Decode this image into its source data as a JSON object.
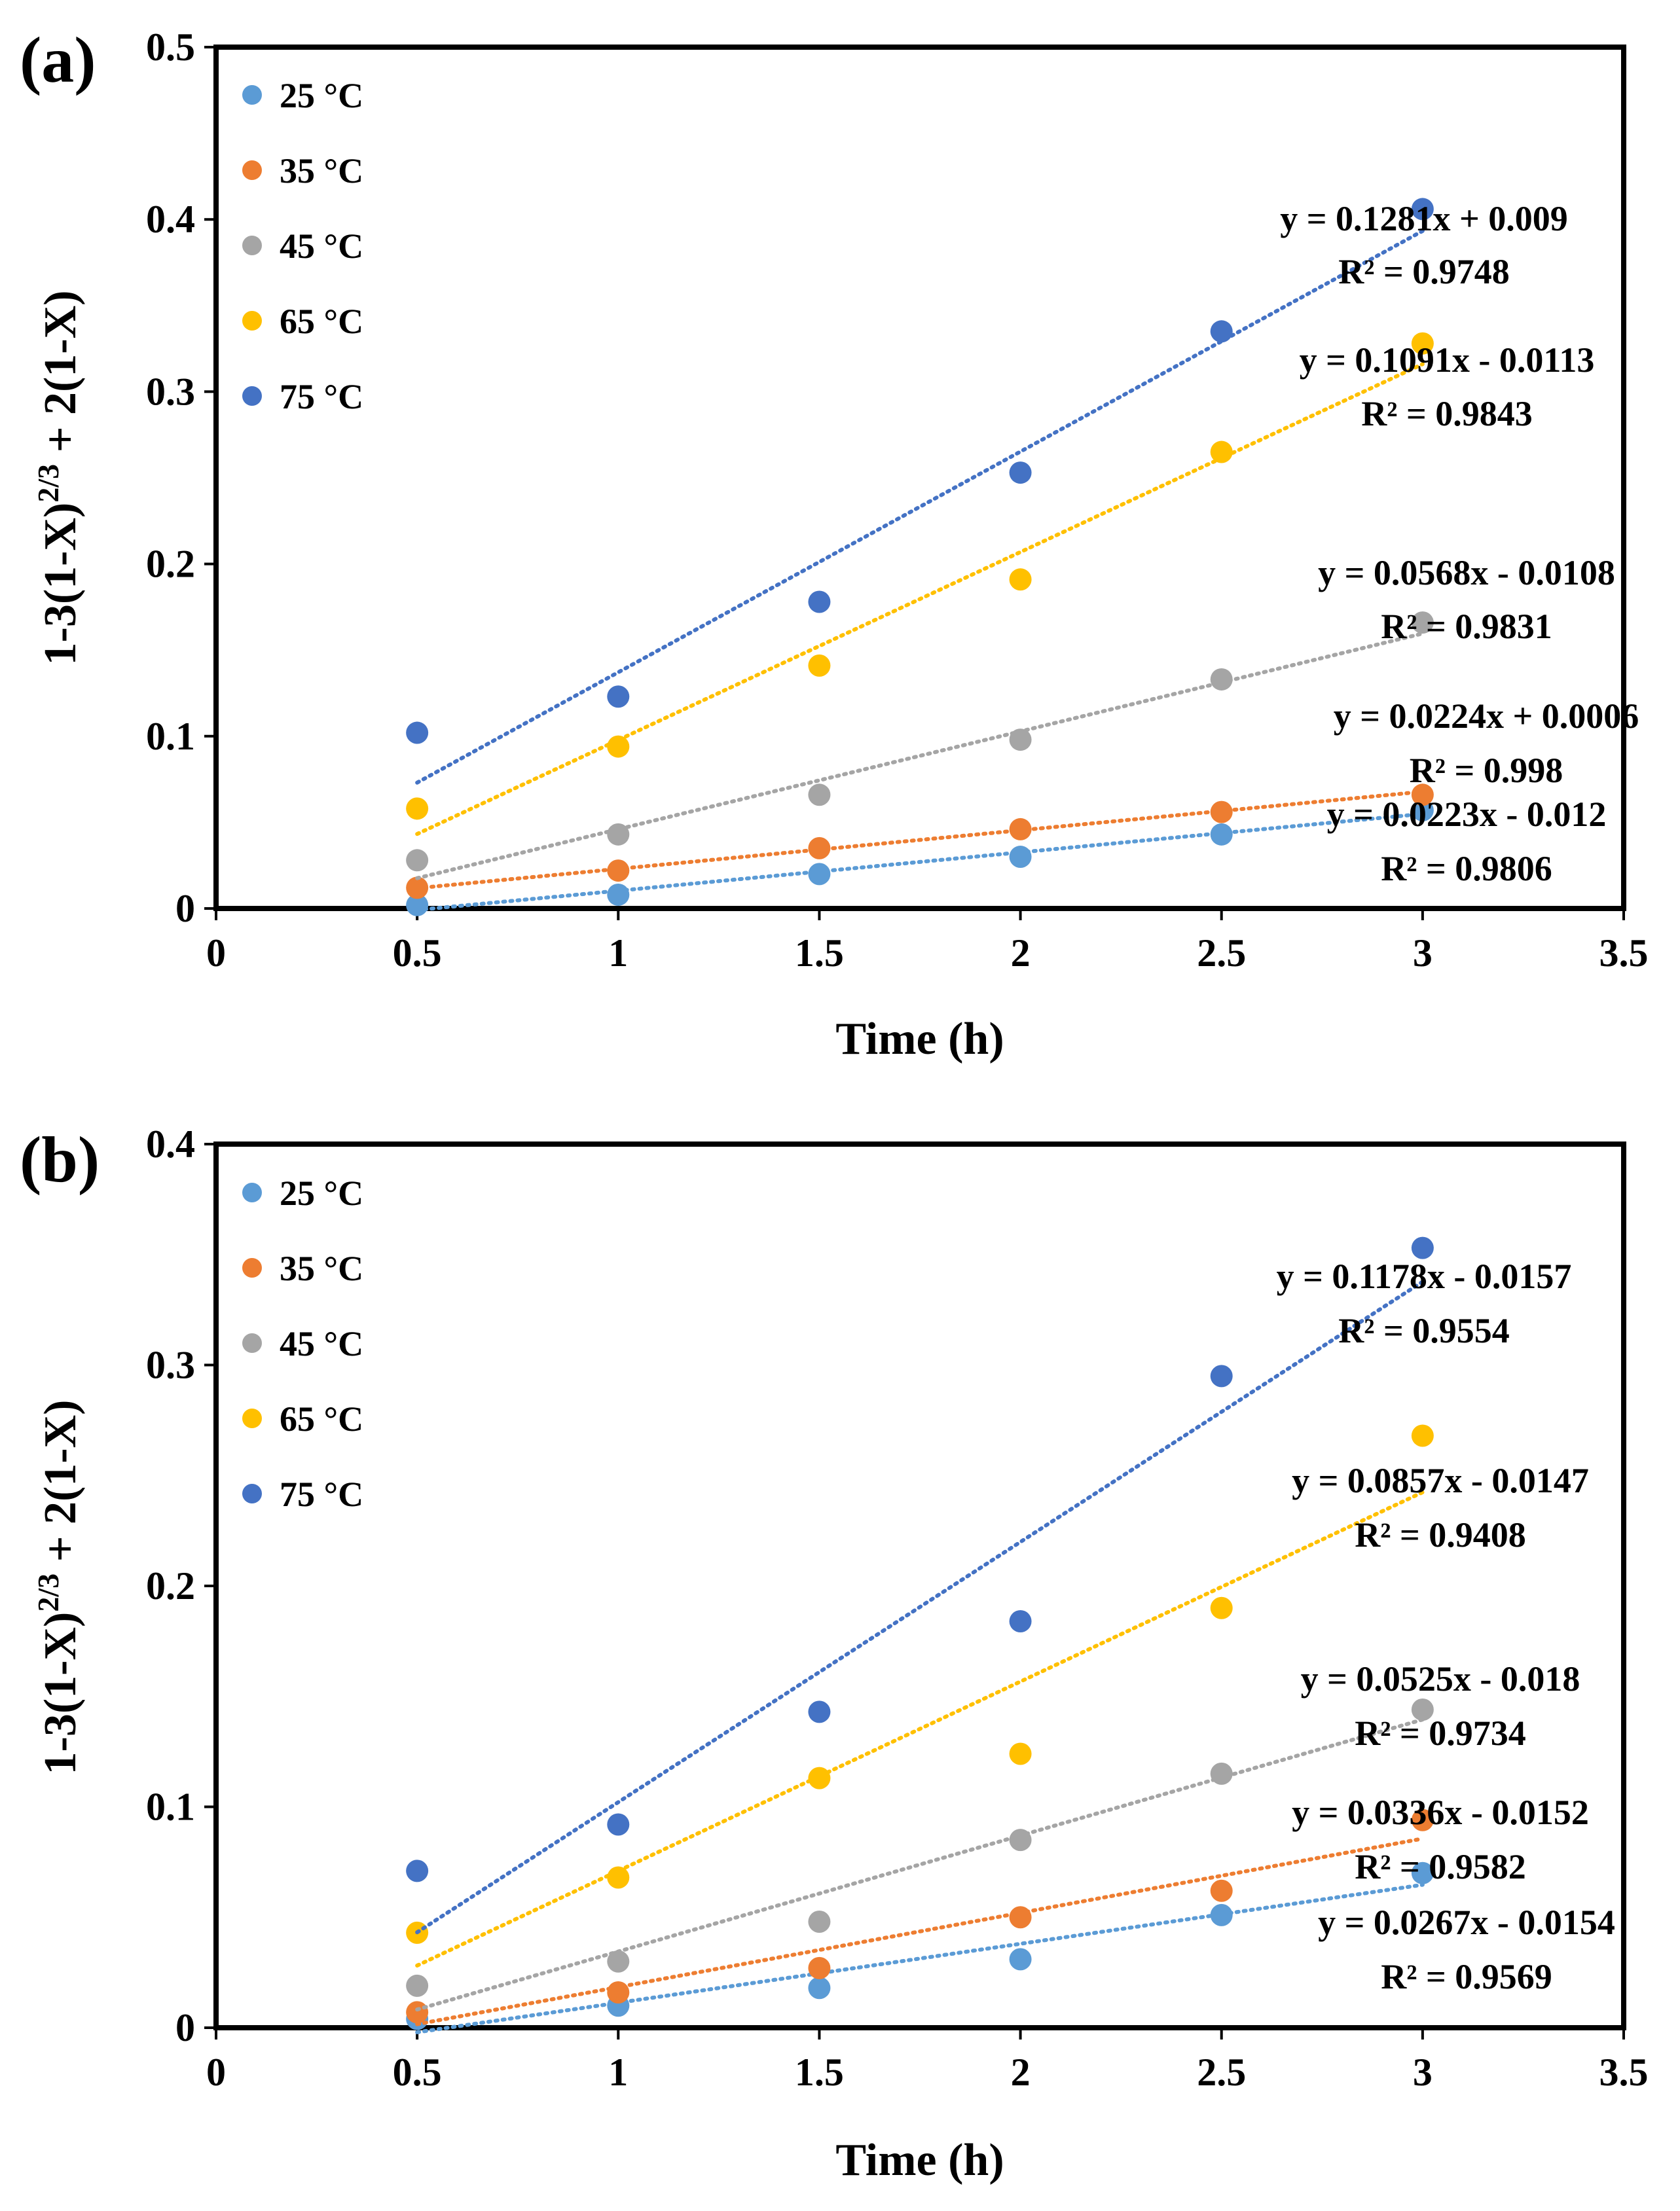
{
  "figure": {
    "panels": [
      "(a)",
      "(b)"
    ]
  },
  "chart_data": [
    {
      "type": "scatter",
      "panel": "(a)",
      "title": "",
      "xlabel": "Time (h)",
      "ylabel": "1-3(1-X)^{2/3} + 2(1-X)",
      "xlim": [
        0,
        3.5
      ],
      "ylim": [
        0,
        0.5
      ],
      "xticks": [
        "0",
        "0.5",
        "1",
        "1.5",
        "2",
        "2.5",
        "3",
        "3.5"
      ],
      "yticks": [
        "0",
        "0.1",
        "0.2",
        "0.3",
        "0.4",
        "0.5"
      ],
      "x": [
        0.5,
        1,
        1.5,
        2,
        2.5,
        3
      ],
      "grid": false,
      "legend": "top-left",
      "series": [
        {
          "name": "25 °C",
          "color": "#5b9bd5",
          "values": [
            0.002,
            0.008,
            0.02,
            0.03,
            0.043,
            0.057
          ],
          "trend": {
            "slope": 0.0223,
            "intercept": -0.012
          },
          "equation": "y = 0.0223x - 0.012",
          "r2": "R² = 0.9806"
        },
        {
          "name": "35 °C",
          "color": "#ed7d31",
          "values": [
            0.012,
            0.022,
            0.035,
            0.046,
            0.056,
            0.066
          ],
          "trend": {
            "slope": 0.0224,
            "intercept": 0.0006
          },
          "equation": "y = 0.0224x + 0.0006",
          "r2": "R² = 0.998"
        },
        {
          "name": "45 °C",
          "color": "#a5a5a5",
          "values": [
            0.028,
            0.043,
            0.066,
            0.098,
            0.133,
            0.166
          ],
          "trend": {
            "slope": 0.0568,
            "intercept": -0.0108
          },
          "equation": "y = 0.0568x - 0.0108",
          "r2": "R² = 0.9831"
        },
        {
          "name": "65 °C",
          "color": "#ffc000",
          "values": [
            0.058,
            0.094,
            0.141,
            0.191,
            0.265,
            0.328
          ],
          "trend": {
            "slope": 0.1091,
            "intercept": -0.0113
          },
          "equation": "y = 0.1091x - 0.0113",
          "r2": "R² = 0.9843"
        },
        {
          "name": "75 °C",
          "color": "#4472c4",
          "values": [
            0.102,
            0.123,
            0.178,
            0.253,
            0.335,
            0.406
          ],
          "trend": {
            "slope": 0.1281,
            "intercept": 0.009
          },
          "equation": "y = 0.1281x + 0.009",
          "r2": "R² = 0.9748"
        }
      ]
    },
    {
      "type": "scatter",
      "panel": "(b)",
      "title": "",
      "xlabel": "Time (h)",
      "ylabel": "1-3(1-X)^{2/3} + 2(1-X)",
      "xlim": [
        0,
        3.5
      ],
      "ylim": [
        0,
        0.4
      ],
      "xticks": [
        "0",
        "0.5",
        "1",
        "1.5",
        "2",
        "2.5",
        "3",
        "3.5"
      ],
      "yticks": [
        "0",
        "0.1",
        "0.2",
        "0.3",
        "0.4"
      ],
      "x": [
        0.5,
        1,
        1.5,
        2,
        2.5,
        3
      ],
      "grid": false,
      "legend": "top-left",
      "series": [
        {
          "name": "25 °C",
          "color": "#5b9bd5",
          "values": [
            0.004,
            0.01,
            0.018,
            0.031,
            0.051,
            0.07
          ],
          "trend": {
            "slope": 0.0267,
            "intercept": -0.0154
          },
          "equation": "y = 0.0267x - 0.0154",
          "r2": "R² = 0.9569"
        },
        {
          "name": "35 °C",
          "color": "#ed7d31",
          "values": [
            0.007,
            0.016,
            0.027,
            0.05,
            0.062,
            0.094
          ],
          "trend": {
            "slope": 0.0336,
            "intercept": -0.0152
          },
          "equation": "y = 0.0336x - 0.0152",
          "r2": "R² = 0.9582"
        },
        {
          "name": "45 °C",
          "color": "#a5a5a5",
          "values": [
            0.019,
            0.03,
            0.048,
            0.085,
            0.115,
            0.144
          ],
          "trend": {
            "slope": 0.0525,
            "intercept": -0.018
          },
          "equation": "y = 0.0525x - 0.018",
          "r2": "R² = 0.9734"
        },
        {
          "name": "65 °C",
          "color": "#ffc000",
          "values": [
            0.043,
            0.068,
            0.113,
            0.124,
            0.19,
            0.268
          ],
          "trend": {
            "slope": 0.0857,
            "intercept": -0.0147
          },
          "equation": "y = 0.0857x - 0.0147",
          "r2": "R² = 0.9408"
        },
        {
          "name": "75 °C",
          "color": "#4472c4",
          "values": [
            0.071,
            0.092,
            0.143,
            0.184,
            0.295,
            0.353
          ],
          "trend": {
            "slope": 0.1178,
            "intercept": -0.0157
          },
          "equation": "y = 0.1178x - 0.0157",
          "r2": "R² = 0.9554"
        }
      ]
    }
  ]
}
